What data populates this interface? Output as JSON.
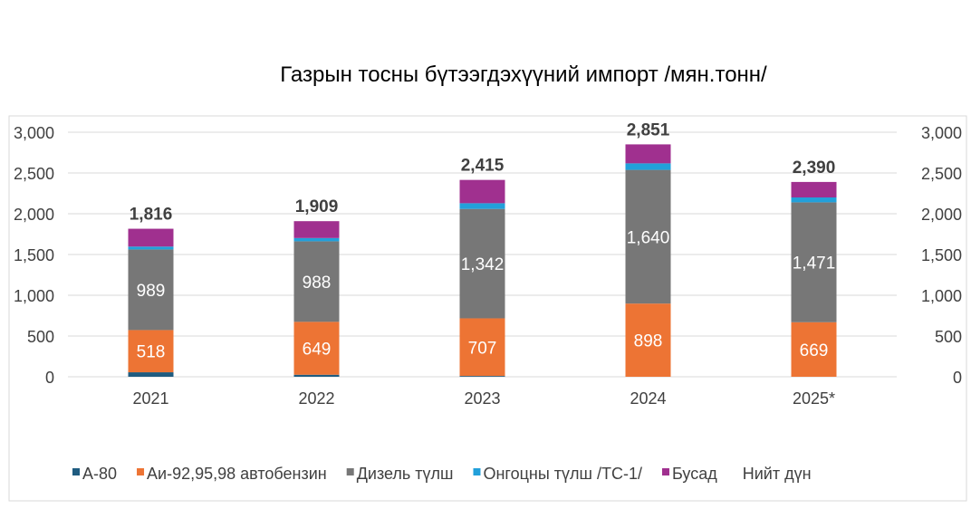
{
  "chart_data": {
    "type": "bar",
    "stacked": true,
    "title": "Газрын тосны бүтээгдэхүүний импорт /мян.тонн/",
    "categories": [
      "2021",
      "2022",
      "2023",
      "2024",
      "2025*"
    ],
    "series": [
      {
        "name": "А-80",
        "color": "#1f5c80",
        "values": [
          55,
          25,
          10,
          0,
          0
        ]
      },
      {
        "name": "Аи-92,95,98  автобензин",
        "color": "#ed7434",
        "values": [
          518,
          649,
          707,
          898,
          669
        ]
      },
      {
        "name": "Дизель  түлш",
        "color": "#777777",
        "values": [
          989,
          988,
          1342,
          1640,
          1471
        ]
      },
      {
        "name": "Онгоцны  түлш  /ТС-1/",
        "color": "#22a0da",
        "values": [
          35,
          40,
          70,
          80,
          60
        ]
      },
      {
        "name": "Бусад",
        "color": "#a0308f",
        "values": [
          219,
          207,
          286,
          233,
          190
        ]
      }
    ],
    "labeled_series": [
      "Аи-92,95,98  автобензин",
      "Дизель  түлш"
    ],
    "value_labels": {
      "Аи-92,95,98  автобензин": [
        "518",
        "649",
        "707",
        "898",
        "669"
      ],
      "Дизель  түлш": [
        "989",
        "988",
        "1,342",
        "1,640",
        "1,471"
      ]
    },
    "totals": {
      "name": "Нийт  дүн",
      "values": [
        1816,
        1909,
        2415,
        2851,
        2390
      ],
      "labels": [
        "1,816",
        "1,909",
        "2,415",
        "2,851",
        "2,390"
      ]
    },
    "yticks": [
      "0",
      "500",
      "1,000",
      "1,500",
      "2,000",
      "2,500",
      "3,000"
    ],
    "ylim": [
      0,
      3000
    ],
    "grid": true,
    "legend": "bottom"
  }
}
